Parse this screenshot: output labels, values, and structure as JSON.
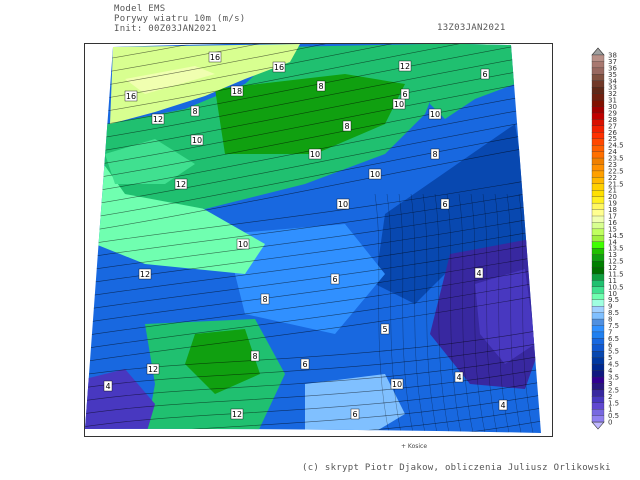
{
  "header": {
    "model": "Model EMS",
    "variable": "Porywy wiatru 10m (m/s)",
    "init": "Init: 00Z03JAN2021",
    "valid_time": "13Z03JAN2021"
  },
  "map": {
    "city_marker": "+ Kosice",
    "point_labels": [
      "16",
      "16",
      "18",
      "16",
      "8",
      "10",
      "12",
      "12",
      "10",
      "8",
      "8",
      "10",
      "10",
      "12",
      "10",
      "10",
      "8",
      "6",
      "6",
      "5",
      "4",
      "4",
      "4",
      "4",
      "6",
      "8",
      "12",
      "12",
      "8",
      "6",
      "6",
      "10",
      "12",
      "10",
      "6"
    ]
  },
  "colorbar": {
    "labels": [
      "38",
      "37",
      "36",
      "35",
      "34",
      "33",
      "32",
      "31",
      "30",
      "29",
      "28",
      "27",
      "26",
      "25",
      "24.5",
      "24",
      "23.5",
      "23",
      "22.5",
      "22",
      "21.5",
      "21",
      "20",
      "19",
      "18",
      "17",
      "16",
      "15",
      "14.5",
      "14",
      "13.5",
      "13",
      "12.5",
      "12",
      "11.5",
      "11",
      "10.5",
      "10",
      "9.5",
      "9",
      "8.5",
      "8",
      "7.5",
      "7",
      "6.5",
      "6",
      "5.5",
      "5",
      "4.5",
      "4",
      "3.5",
      "3",
      "2.5",
      "2",
      "1.5",
      "1",
      "0.5",
      "0"
    ],
    "colors": [
      "#b89088",
      "#a87870",
      "#986860",
      "#805040",
      "#703828",
      "#602818",
      "#702010",
      "#801000",
      "#a00000",
      "#c00000",
      "#d81000",
      "#f02000",
      "#ff3000",
      "#ff4800",
      "#ff6000",
      "#ff7000",
      "#f08000",
      "#ff9000",
      "#ffa000",
      "#ffb800",
      "#ffd000",
      "#ffe000",
      "#fff020",
      "#fff860",
      "#ffff90",
      "#f0ffb0",
      "#d8ff90",
      "#c0ff60",
      "#a0f040",
      "#40ff00",
      "#20c000",
      "#10a010",
      "#008000",
      "#007000",
      "#10a040",
      "#20c070",
      "#40e090",
      "#70ffb0",
      "#a0ffe0",
      "#a0d0ff",
      "#80c0ff",
      "#5090e0",
      "#3090ff",
      "#2080f0",
      "#1868e0",
      "#1058d0",
      "#0848b0",
      "#0038a0",
      "#002890",
      "#101880",
      "#300090",
      "#281880",
      "#3828a0",
      "#4838c0",
      "#6048d0",
      "#7868e0",
      "#9080f0"
    ],
    "over_color": "#a0a0a0",
    "under_color": "#c0b8ff"
  },
  "footer": {
    "credit": "(c) skrypt Piotr Djakow, obliczenia Juliusz Orlikowski"
  }
}
